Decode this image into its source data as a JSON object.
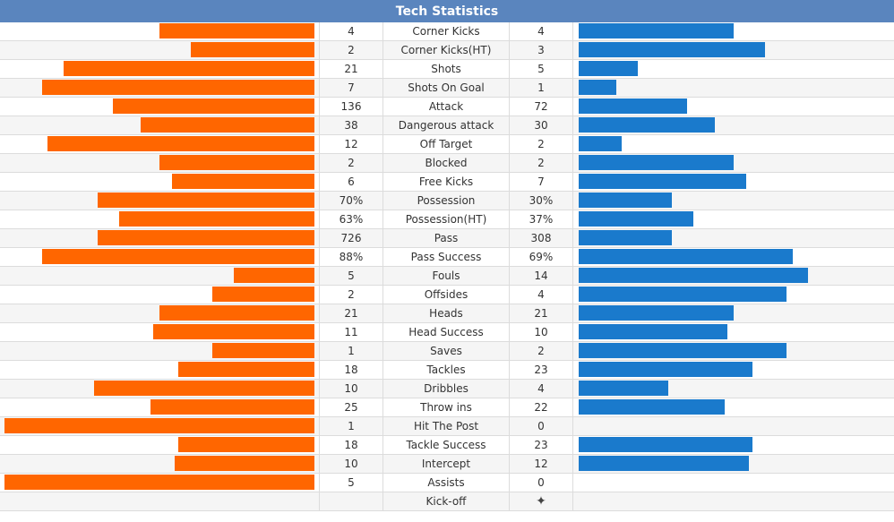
{
  "title": "Tech Statistics",
  "colors": {
    "header": "#5a85be",
    "home_bar": "#ff6600",
    "away_bar": "#1a7acc"
  },
  "rows": [
    {
      "home": "4",
      "label": "Corner Kicks",
      "away": "4",
      "home_frac": 0.5,
      "away_frac": 0.5
    },
    {
      "home": "2",
      "label": "Corner Kicks(HT)",
      "away": "3",
      "home_frac": 0.4,
      "away_frac": 0.6
    },
    {
      "home": "21",
      "label": "Shots",
      "away": "5",
      "home_frac": 0.81,
      "away_frac": 0.19
    },
    {
      "home": "7",
      "label": "Shots On Goal",
      "away": "1",
      "home_frac": 0.88,
      "away_frac": 0.12
    },
    {
      "home": "136",
      "label": "Attack",
      "away": "72",
      "home_frac": 0.65,
      "away_frac": 0.35
    },
    {
      "home": "38",
      "label": "Dangerous attack",
      "away": "30",
      "home_frac": 0.56,
      "away_frac": 0.44
    },
    {
      "home": "12",
      "label": "Off Target",
      "away": "2",
      "home_frac": 0.86,
      "away_frac": 0.14
    },
    {
      "home": "2",
      "label": "Blocked",
      "away": "2",
      "home_frac": 0.5,
      "away_frac": 0.5
    },
    {
      "home": "6",
      "label": "Free Kicks",
      "away": "7",
      "home_frac": 0.46,
      "away_frac": 0.54
    },
    {
      "home": "70%",
      "label": "Possession",
      "away": "30%",
      "home_frac": 0.7,
      "away_frac": 0.3
    },
    {
      "home": "63%",
      "label": "Possession(HT)",
      "away": "37%",
      "home_frac": 0.63,
      "away_frac": 0.37
    },
    {
      "home": "726",
      "label": "Pass",
      "away": "308",
      "home_frac": 0.7,
      "away_frac": 0.3
    },
    {
      "home": "88%",
      "label": "Pass Success",
      "away": "69%",
      "home_frac": 0.88,
      "away_frac": 0.69
    },
    {
      "home": "5",
      "label": "Fouls",
      "away": "14",
      "home_frac": 0.26,
      "away_frac": 0.74
    },
    {
      "home": "2",
      "label": "Offsides",
      "away": "4",
      "home_frac": 0.33,
      "away_frac": 0.67
    },
    {
      "home": "21",
      "label": "Heads",
      "away": "21",
      "home_frac": 0.5,
      "away_frac": 0.5
    },
    {
      "home": "11",
      "label": "Head Success",
      "away": "10",
      "home_frac": 0.52,
      "away_frac": 0.48
    },
    {
      "home": "1",
      "label": "Saves",
      "away": "2",
      "home_frac": 0.33,
      "away_frac": 0.67
    },
    {
      "home": "18",
      "label": "Tackles",
      "away": "23",
      "home_frac": 0.44,
      "away_frac": 0.56
    },
    {
      "home": "10",
      "label": "Dribbles",
      "away": "4",
      "home_frac": 0.71,
      "away_frac": 0.29
    },
    {
      "home": "25",
      "label": "Throw ins",
      "away": "22",
      "home_frac": 0.53,
      "away_frac": 0.47
    },
    {
      "home": "1",
      "label": "Hit The Post",
      "away": "0",
      "home_frac": 1.0,
      "away_frac": 0.0
    },
    {
      "home": "18",
      "label": "Tackle Success",
      "away": "23",
      "home_frac": 0.44,
      "away_frac": 0.56
    },
    {
      "home": "10",
      "label": "Intercept",
      "away": "12",
      "home_frac": 0.45,
      "away_frac": 0.55
    },
    {
      "home": "5",
      "label": "Assists",
      "away": "0",
      "home_frac": 1.0,
      "away_frac": 0.0
    },
    {
      "home": "",
      "label": "Kick-off",
      "away": "",
      "home_frac": 0,
      "away_frac": 0,
      "away_icon": "kickoff-icon"
    }
  ]
}
